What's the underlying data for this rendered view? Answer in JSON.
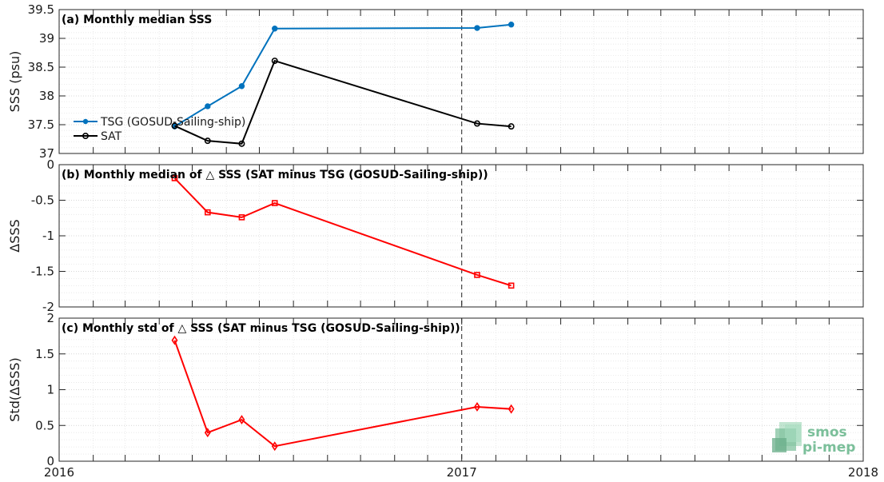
{
  "chart_data": [
    {
      "type": "line",
      "title": "(a) Monthly median SSS",
      "xlabel": "",
      "ylabel": "SSS (psu)",
      "xlim": [
        "2016-01-01",
        "2018-01-01"
      ],
      "ylim": [
        37,
        39.5
      ],
      "yticks": [
        "37",
        "37.5",
        "38",
        "38.5",
        "39",
        "39.5"
      ],
      "grid": true,
      "legend_position": "left",
      "series": [
        {
          "name": "TSG (GOSUD-Sailing-ship)",
          "color": "#0072BD",
          "marker": "filled-circle",
          "x": [
            "2016-04-15",
            "2016-05-15",
            "2016-06-15",
            "2016-07-15",
            "2017-01-15",
            "2017-02-15"
          ],
          "y": [
            37.47,
            37.82,
            38.17,
            39.17,
            39.18,
            39.24
          ]
        },
        {
          "name": "SAT",
          "color": "#000000",
          "marker": "open-circle",
          "x": [
            "2016-04-15",
            "2016-05-15",
            "2016-06-15",
            "2016-07-15",
            "2017-01-15",
            "2017-02-15"
          ],
          "y": [
            37.48,
            37.22,
            37.17,
            38.61,
            37.52,
            37.47
          ]
        }
      ],
      "annotations": [
        "vertical dashed line at 2017"
      ]
    },
    {
      "type": "line",
      "title": "(b) Monthly median of △ SSS (SAT minus TSG (GOSUD-Sailing-ship))",
      "xlabel": "",
      "ylabel": "ΔSSS",
      "xlim": [
        "2016-01-01",
        "2018-01-01"
      ],
      "ylim": [
        -2,
        0
      ],
      "yticks": [
        "-2",
        "-1.5",
        "-1",
        "-0.5",
        "0"
      ],
      "grid": true,
      "series": [
        {
          "color": "#FF0000",
          "marker": "square",
          "x": [
            "2016-04-15",
            "2016-05-15",
            "2016-06-15",
            "2016-07-15",
            "2017-01-15",
            "2017-02-15"
          ],
          "y": [
            -0.19,
            -0.67,
            -0.74,
            -0.54,
            -1.55,
            -1.7
          ]
        }
      ],
      "annotations": [
        "horizontal dashed line at 0",
        "vertical dashed line at 2017"
      ]
    },
    {
      "type": "line",
      "title": "(c) Monthly std of △ SSS (SAT minus TSG (GOSUD-Sailing-ship))",
      "xlabel": "",
      "ylabel": "Std(ΔSSS)",
      "xlim": [
        "2016-01-01",
        "2018-01-01"
      ],
      "ylim": [
        0,
        2
      ],
      "yticks": [
        "0",
        "0.5",
        "1",
        "1.5",
        "2"
      ],
      "xticks": [
        "2016",
        "2017",
        "2018"
      ],
      "grid": true,
      "series": [
        {
          "color": "#FF0000",
          "marker": "diamond",
          "x": [
            "2016-04-15",
            "2016-05-15",
            "2016-06-15",
            "2016-07-15",
            "2017-01-15",
            "2017-02-15"
          ],
          "y": [
            1.69,
            0.4,
            0.58,
            0.21,
            0.76,
            0.73
          ]
        }
      ],
      "annotations": [
        "vertical dashed line at 2017"
      ]
    }
  ],
  "logo": {
    "line1": "smos",
    "line2": "pi-mep",
    "color": "#7bbf9a"
  }
}
